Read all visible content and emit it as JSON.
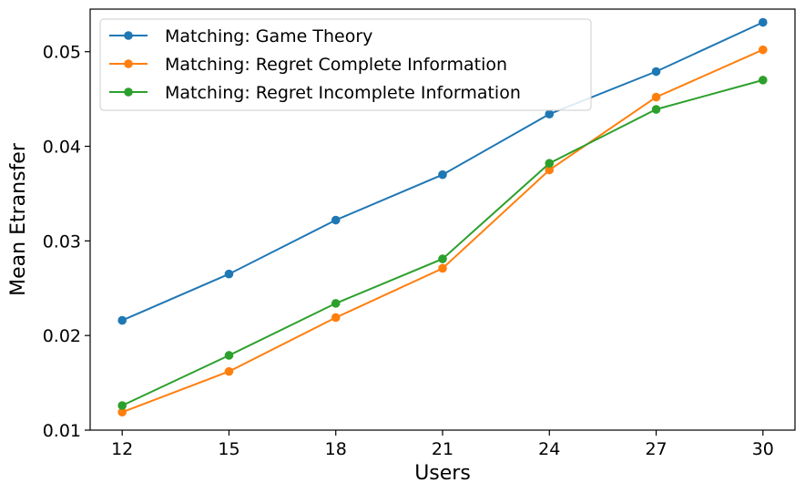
{
  "chart_data": {
    "type": "line",
    "title": "",
    "xlabel": "Users",
    "ylabel": "Mean Etransfer",
    "x": [
      12,
      15,
      18,
      21,
      24,
      27,
      30
    ],
    "x_tick_labels": [
      "12",
      "15",
      "18",
      "21",
      "24",
      "27",
      "30"
    ],
    "y_ticks": [
      0.01,
      0.02,
      0.03,
      0.04,
      0.05
    ],
    "y_tick_labels": [
      "0.01",
      "0.02",
      "0.03",
      "0.04",
      "0.05"
    ],
    "ylim": [
      0.01,
      0.0545
    ],
    "xlim": [
      11.1,
      30.9
    ],
    "grid": false,
    "legend_position": "upper left",
    "series": [
      {
        "name": "Matching: Game Theory",
        "color": "#1f77b4",
        "marker": "circle",
        "values": [
          0.0216,
          0.0265,
          0.0322,
          0.037,
          0.0434,
          0.0479,
          0.0531
        ]
      },
      {
        "name": "Matching: Regret Complete Information",
        "color": "#ff7f0e",
        "marker": "circle",
        "values": [
          0.0119,
          0.0162,
          0.0219,
          0.0271,
          0.0375,
          0.0452,
          0.0502
        ]
      },
      {
        "name": "Matching: Regret Incomplete Information",
        "color": "#2ca02c",
        "marker": "circle",
        "values": [
          0.0126,
          0.0179,
          0.0234,
          0.0281,
          0.0382,
          0.0439,
          0.047
        ]
      }
    ]
  }
}
